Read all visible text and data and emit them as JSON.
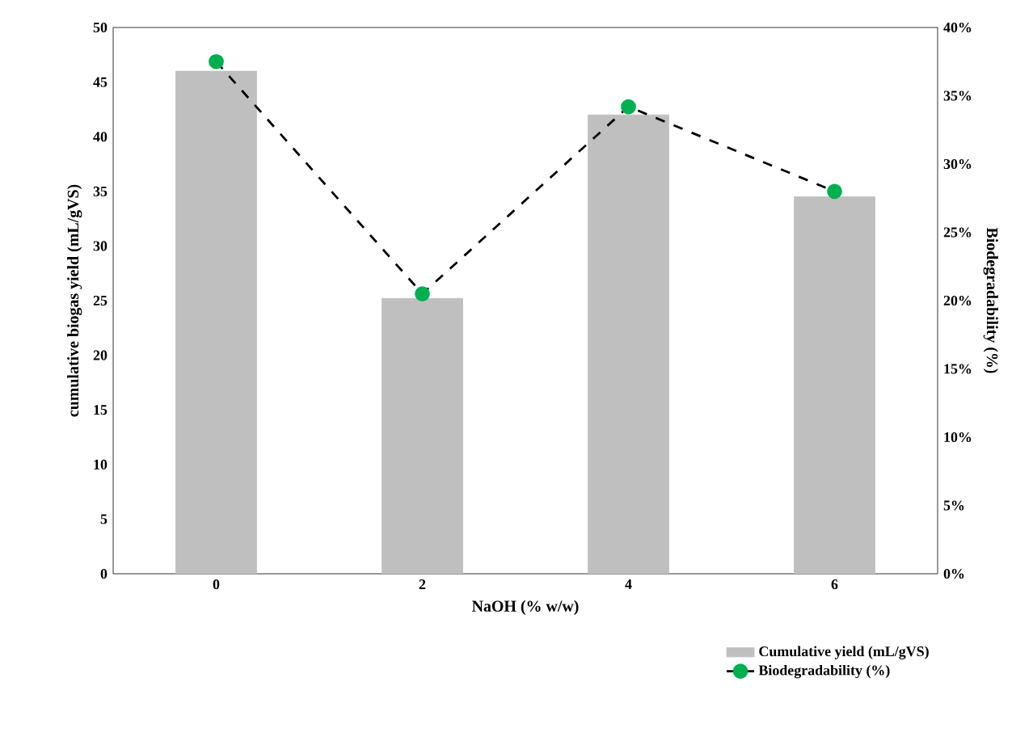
{
  "chart_data": {
    "type": "bar",
    "xlabel": "NaOH (% w/w)",
    "ylabel": "cumulative biogas yield (mL/gVS)",
    "y2label": "Biodegradability (%)",
    "categories": [
      "0",
      "2",
      "4",
      "6"
    ],
    "series": [
      {
        "name": "Cumulative yield (mL/gVS)",
        "color": "#bfbfbf",
        "values": [
          46,
          25.2,
          42,
          34.5
        ]
      },
      {
        "name": "Biodegradability (%)",
        "type": "line",
        "axis": "y2",
        "color": "#00b050",
        "marker": "circle",
        "line_style": "dashed",
        "values": [
          37.5,
          20.5,
          34.2,
          28.0
        ]
      }
    ],
    "ylim": [
      0,
      50
    ],
    "yticks": [
      0,
      5,
      10,
      15,
      20,
      25,
      30,
      35,
      40,
      45,
      50
    ],
    "y2lim": [
      0,
      40
    ],
    "y2ticks": [
      {
        "value": 0,
        "label": "0%"
      },
      {
        "value": 5,
        "label": "5%"
      },
      {
        "value": 10,
        "label": "10%"
      },
      {
        "value": 15,
        "label": "15%"
      },
      {
        "value": 20,
        "label": "20%"
      },
      {
        "value": 25,
        "label": "25%"
      },
      {
        "value": 30,
        "label": "30%"
      },
      {
        "value": 35,
        "label": "35%"
      },
      {
        "value": 40,
        "label": "40%"
      }
    ],
    "grid": false,
    "legend": "bottom right"
  }
}
